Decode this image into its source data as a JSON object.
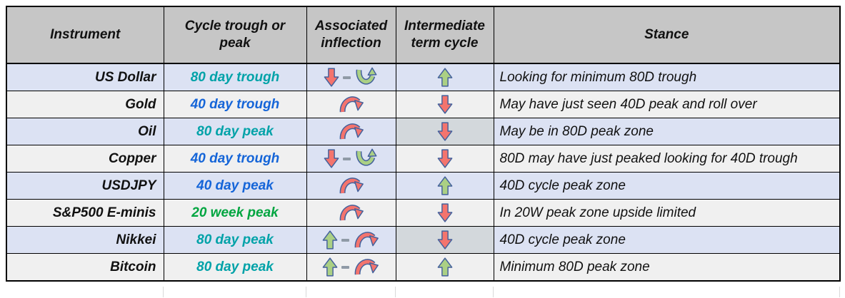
{
  "colors": {
    "header_bg": "#c6c6c6",
    "row_lavender": "#dce2f3",
    "row_plain": "#f0f0f0",
    "cell_gray": "#d3d8dc",
    "teal": "#00a2a8",
    "blue": "#1565d8",
    "green": "#00a540",
    "arrow_red": "#f4746d",
    "arrow_green": "#abd084",
    "arrow_outline": "#44619c",
    "dash_gray": "#8f9aa6"
  },
  "chart_data": {
    "type": "table",
    "columns": [
      "Instrument",
      "Cycle trough or peak",
      "Associated inflection",
      "Intermediate term cycle",
      "Stance"
    ],
    "rows": [
      {
        "instrument": "US Dollar",
        "cycle": "80 day trough",
        "cycle_color": "#00a2a8",
        "inflection": [
          "red-down-arrow",
          "dash",
          "green-u-turn"
        ],
        "intermediate": [
          "green-up-arrow"
        ],
        "stance": "Looking for minimum 80D trough",
        "row_bg": "#dce2f3"
      },
      {
        "instrument": "Gold",
        "cycle": "40 day trough",
        "cycle_color": "#1565d8",
        "inflection": [
          "red-arch"
        ],
        "intermediate": [
          "red-down-arrow"
        ],
        "stance": "May have just seen 40D peak and roll over",
        "row_bg": "#f0f0f0"
      },
      {
        "instrument": "Oil",
        "cycle": "80 day peak",
        "cycle_color": "#00a2a8",
        "inflection": [
          "red-arch"
        ],
        "intermediate": [
          "red-down-arrow"
        ],
        "stance": "May be in 80D peak zone",
        "row_bg": "#dce2f3",
        "intermediate_bg": "#d3d8dc"
      },
      {
        "instrument": "Copper",
        "cycle": "40 day trough",
        "cycle_color": "#1565d8",
        "inflection": [
          "red-down-arrow",
          "dash",
          "green-u-turn"
        ],
        "intermediate": [
          "red-down-arrow"
        ],
        "stance": "80D may have just peaked looking for 40D trough",
        "row_bg": "#f0f0f0",
        "inflection_bg": "#dce2f3"
      },
      {
        "instrument": "USDJPY",
        "cycle": "40 day peak",
        "cycle_color": "#1565d8",
        "inflection": [
          "red-arch"
        ],
        "intermediate": [
          "green-up-arrow"
        ],
        "stance": "40D cycle peak zone",
        "row_bg": "#dce2f3"
      },
      {
        "instrument": "S&P500 E-minis",
        "cycle": "20 week peak",
        "cycle_color": "#00a540",
        "inflection": [
          "red-arch"
        ],
        "intermediate": [
          "red-down-arrow"
        ],
        "stance": "In 20W peak zone upside limited",
        "row_bg": "#f0f0f0"
      },
      {
        "instrument": "Nikkei",
        "cycle": "80 day peak",
        "cycle_color": "#00a2a8",
        "inflection": [
          "green-up-arrow",
          "dash",
          "red-arch"
        ],
        "intermediate": [
          "red-down-arrow"
        ],
        "stance": "40D cycle peak zone",
        "row_bg": "#dce2f3",
        "intermediate_bg": "#d3d8dc"
      },
      {
        "instrument": "Bitcoin",
        "cycle": "80 day peak",
        "cycle_color": "#00a2a8",
        "inflection": [
          "green-up-arrow",
          "dash",
          "red-arch"
        ],
        "intermediate": [
          "green-up-arrow"
        ],
        "stance": "Minimum 80D peak zone",
        "row_bg": "#f0f0f0"
      }
    ]
  }
}
